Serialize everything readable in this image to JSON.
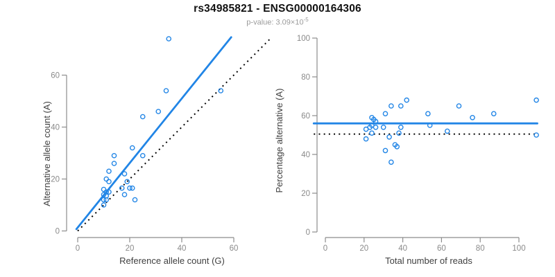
{
  "header": {
    "title": "rs34985821 - ENSG00000164306",
    "subtitle": "p-value: 3.09×10",
    "subtitle_exponent": "-5"
  },
  "colors": {
    "accent": "#2185e6",
    "dark": "#000000",
    "axis": "#8c8c8c",
    "tick_label": "#8a8a8a",
    "axis_title": "#404040",
    "title": "#111111",
    "subtitle": "#9b9b9b",
    "background": "#ffffff"
  },
  "chart_data": [
    {
      "id": "left",
      "type": "scatter",
      "title": "",
      "xlabel": "Reference allele count (G)",
      "ylabel": "Alternative allele count (A)",
      "xticks": [
        0,
        20,
        40,
        60
      ],
      "yticks": [
        0,
        20,
        40,
        60
      ],
      "xlim": [
        -2,
        75
      ],
      "ylim": [
        -2,
        78
      ],
      "grid": false,
      "legend": "none",
      "points": [
        [
          35,
          74
        ],
        [
          34,
          54
        ],
        [
          55,
          54
        ],
        [
          31,
          46
        ],
        [
          25,
          44
        ],
        [
          14,
          29
        ],
        [
          25,
          29
        ],
        [
          14,
          26
        ],
        [
          12,
          23
        ],
        [
          21,
          32
        ],
        [
          18,
          22
        ],
        [
          12,
          19
        ],
        [
          11,
          20
        ],
        [
          19,
          19
        ],
        [
          17,
          16.5
        ],
        [
          20,
          16.5
        ],
        [
          21,
          16.5
        ],
        [
          10,
          16
        ],
        [
          11,
          15
        ],
        [
          12,
          15
        ],
        [
          11,
          13.5
        ],
        [
          10,
          14
        ],
        [
          18,
          14
        ],
        [
          10,
          12
        ],
        [
          11,
          12
        ],
        [
          22,
          12
        ],
        [
          10,
          10
        ]
      ],
      "lines": [
        {
          "kind": "fit-line",
          "style": "solid",
          "color_key": "accent",
          "x1": -0.5,
          "y1": 0.7,
          "x2": 59,
          "y2": 74.6
        },
        {
          "kind": "identity-line",
          "style": "dotted",
          "color_key": "dark",
          "x1": 0,
          "y1": 0,
          "x2": 74,
          "y2": 74
        }
      ]
    },
    {
      "id": "right",
      "type": "scatter",
      "title": "",
      "xlabel": "Total number of reads",
      "ylabel": "Percentage alternative (A)",
      "xticks": [
        0,
        20,
        40,
        60,
        80,
        100
      ],
      "yticks": [
        0,
        20,
        40,
        60,
        80,
        100
      ],
      "xlim": [
        -6,
        110
      ],
      "ylim": [
        0,
        100
      ],
      "grid": false,
      "legend": "none",
      "points": [
        [
          21,
          53
        ],
        [
          21,
          48
        ],
        [
          23,
          54
        ],
        [
          24,
          59
        ],
        [
          24,
          55
        ],
        [
          24,
          51
        ],
        [
          25,
          58
        ],
        [
          26,
          57
        ],
        [
          26,
          54
        ],
        [
          30,
          54
        ],
        [
          31,
          61
        ],
        [
          31,
          42
        ],
        [
          33,
          49
        ],
        [
          34,
          65
        ],
        [
          34,
          36
        ],
        [
          36,
          45
        ],
        [
          37,
          44
        ],
        [
          38,
          51
        ],
        [
          39,
          65
        ],
        [
          39,
          54
        ],
        [
          42,
          68
        ],
        [
          53,
          61
        ],
        [
          54,
          55
        ],
        [
          63,
          52
        ],
        [
          69,
          65
        ],
        [
          76,
          59
        ],
        [
          87,
          61
        ],
        [
          109,
          68
        ],
        [
          109,
          50
        ]
      ],
      "lines": [
        {
          "kind": "fit-line",
          "style": "solid",
          "color_key": "accent",
          "x1": -6,
          "y1": 56,
          "x2": 109.5,
          "y2": 56
        },
        {
          "kind": "reference-line",
          "style": "dotted",
          "color_key": "dark",
          "x1": -6,
          "y1": 50.5,
          "x2": 109.5,
          "y2": 50.5
        }
      ]
    }
  ]
}
